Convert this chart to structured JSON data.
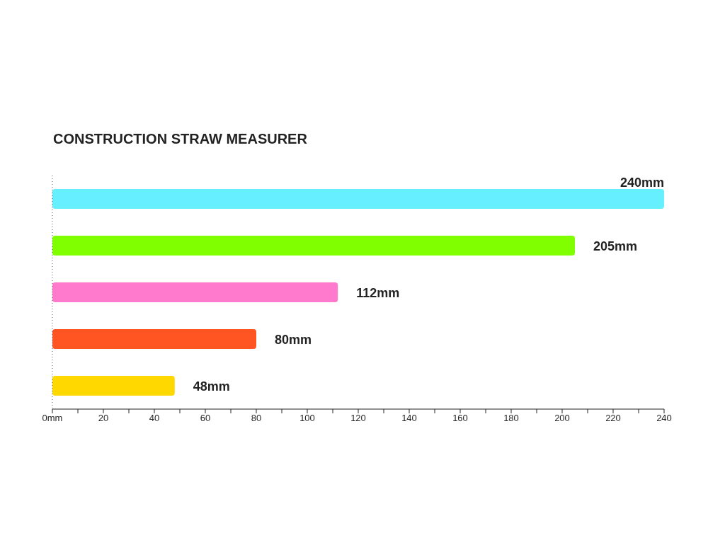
{
  "chart_data": {
    "type": "bar",
    "orientation": "horizontal",
    "title": "CONSTRUCTION STRAW MEASURER",
    "categories": [
      null,
      null,
      null,
      null,
      null
    ],
    "values": [
      240,
      205,
      112,
      80,
      48
    ],
    "colors": [
      "#66f0ff",
      "#80ff00",
      "#ff7acc",
      "#ff5522",
      "#ffd800"
    ],
    "value_labels": [
      "240mm",
      "205mm",
      "112mm",
      "80mm",
      "48mm"
    ],
    "xlim": [
      0,
      240
    ],
    "xticks": [
      {
        "value": 0,
        "label": "0mm"
      },
      {
        "value": 10,
        "label": null
      },
      20,
      {
        "value": 30,
        "label": null
      },
      40,
      {
        "value": 50,
        "label": null
      },
      60,
      {
        "value": 70,
        "label": null
      },
      80,
      {
        "value": 90,
        "label": null
      },
      100,
      {
        "value": 110,
        "label": null
      },
      120,
      {
        "value": 130,
        "label": null
      },
      140,
      {
        "value": 150,
        "label": null
      },
      160,
      {
        "value": 170,
        "label": null
      },
      180,
      {
        "value": 190,
        "label": null
      },
      200,
      {
        "value": 210,
        "label": null
      },
      220,
      {
        "value": 230,
        "label": null
      },
      240
    ],
    "tick_labels": "x",
    "grid": false
  }
}
